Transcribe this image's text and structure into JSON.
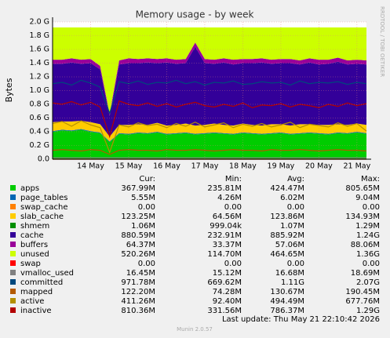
{
  "chart_data": {
    "type": "area",
    "title": "Memory usage - by week",
    "ylabel": "Bytes",
    "side_note": "RRDTOOL / TOBI OETIKER",
    "categories": [
      null,
      null,
      null,
      null,
      "14 May",
      null,
      null,
      null,
      "15 May",
      null,
      null,
      null,
      "16 May",
      null,
      null,
      null,
      "17 May",
      null,
      null,
      null,
      "18 May",
      null,
      null,
      null,
      "19 May",
      null,
      null,
      null,
      "20 May",
      null,
      null,
      null,
      "21 May",
      null
    ],
    "ylim": [
      0,
      2.0
    ],
    "yticks": [
      {
        "value": 0,
        "label": "0.0"
      },
      {
        "value": 0.2,
        "label": "0.2 G"
      },
      {
        "value": 0.4,
        "label": "0.4 G"
      },
      {
        "value": 0.6,
        "label": "0.6 G"
      },
      {
        "value": 0.8,
        "label": "0.8 G"
      },
      {
        "value": 1.0,
        "label": "1.0 G"
      },
      {
        "value": 1.2,
        "label": "1.2 G"
      },
      {
        "value": 1.4,
        "label": "1.4 G"
      },
      {
        "value": 1.6,
        "label": "1.6 G"
      },
      {
        "value": 1.8,
        "label": "1.8 G"
      },
      {
        "value": 2.0,
        "label": "2.0 G"
      }
    ],
    "grid": true,
    "series": [
      {
        "name": "apps",
        "color": "#00cc00",
        "style": "area",
        "values": [
          0.4,
          0.42,
          0.41,
          0.43,
          0.4,
          0.38,
          0.25,
          0.37,
          0.36,
          0.38,
          0.37,
          0.39,
          0.36,
          0.37,
          0.38,
          0.36,
          0.37,
          0.38,
          0.37,
          0.36,
          0.38,
          0.37,
          0.36,
          0.37,
          0.38,
          0.36,
          0.37,
          0.38,
          0.37,
          0.36,
          0.38,
          0.37,
          0.39,
          0.37
        ]
      },
      {
        "name": "page_tables",
        "color": "#0066b3",
        "style": "area",
        "values": [
          0.01,
          0.01,
          0.01,
          0.01,
          0.01,
          0.01,
          0.01,
          0.01,
          0.01,
          0.01,
          0.01,
          0.01,
          0.01,
          0.01,
          0.01,
          0.01,
          0.01,
          0.01,
          0.01,
          0.01,
          0.01,
          0.01,
          0.01,
          0.01,
          0.01,
          0.01,
          0.01,
          0.01,
          0.01,
          0.01,
          0.01,
          0.01,
          0.01,
          0.01
        ]
      },
      {
        "name": "swap_cache",
        "color": "#ff8000",
        "style": "area",
        "values": [
          0,
          0,
          0,
          0,
          0,
          0,
          0,
          0,
          0,
          0,
          0,
          0,
          0,
          0,
          0,
          0,
          0,
          0,
          0,
          0,
          0,
          0,
          0,
          0,
          0,
          0,
          0,
          0,
          0,
          0,
          0,
          0,
          0,
          0
        ]
      },
      {
        "name": "slab_cache",
        "color": "#ffcc00",
        "style": "area",
        "values": [
          0.13,
          0.12,
          0.13,
          0.12,
          0.13,
          0.12,
          0.07,
          0.12,
          0.13,
          0.12,
          0.12,
          0.13,
          0.12,
          0.12,
          0.13,
          0.12,
          0.12,
          0.13,
          0.12,
          0.12,
          0.13,
          0.12,
          0.12,
          0.13,
          0.12,
          0.12,
          0.13,
          0.12,
          0.12,
          0.13,
          0.12,
          0.12,
          0.12,
          0.12
        ]
      },
      {
        "name": "shmem",
        "color": "#008f00",
        "style": "area",
        "values": [
          0,
          0,
          0,
          0,
          0,
          0,
          0,
          0,
          0,
          0,
          0,
          0,
          0,
          0,
          0,
          0,
          0,
          0,
          0,
          0,
          0,
          0,
          0,
          0,
          0,
          0,
          0,
          0,
          0,
          0,
          0,
          0,
          0,
          0
        ]
      },
      {
        "name": "cache",
        "color": "#330099",
        "style": "area",
        "values": [
          0.85,
          0.84,
          0.86,
          0.83,
          0.86,
          0.8,
          0.3,
          0.88,
          0.9,
          0.89,
          0.91,
          0.87,
          0.92,
          0.89,
          0.88,
          1.15,
          0.9,
          0.87,
          0.91,
          0.89,
          0.88,
          0.9,
          0.92,
          0.88,
          0.89,
          0.91,
          0.87,
          0.9,
          0.88,
          0.89,
          0.91,
          0.88,
          0.87,
          0.88
        ]
      },
      {
        "name": "buffers",
        "color": "#990099",
        "style": "area",
        "values": [
          0.06,
          0.06,
          0.06,
          0.06,
          0.06,
          0.05,
          0.03,
          0.06,
          0.07,
          0.06,
          0.06,
          0.06,
          0.06,
          0.06,
          0.06,
          0.06,
          0.06,
          0.06,
          0.06,
          0.07,
          0.06,
          0.06,
          0.06,
          0.06,
          0.06,
          0.06,
          0.06,
          0.06,
          0.07,
          0.06,
          0.06,
          0.06,
          0.06,
          0.06
        ]
      },
      {
        "name": "unused",
        "color": "#ccff00",
        "style": "area",
        "values": [
          0.47,
          0.47,
          0.45,
          0.47,
          0.46,
          0.56,
          1.26,
          0.48,
          0.45,
          0.46,
          0.45,
          0.46,
          0.45,
          0.47,
          0.46,
          0.22,
          0.46,
          0.47,
          0.45,
          0.47,
          0.46,
          0.46,
          0.45,
          0.47,
          0.46,
          0.46,
          0.48,
          0.45,
          0.47,
          0.47,
          0.44,
          0.48,
          0.47,
          0.48
        ]
      },
      {
        "name": "swap",
        "color": "#ff0000",
        "style": "line",
        "values": [
          0,
          0,
          0,
          0,
          0,
          0,
          0,
          0,
          0,
          0,
          0,
          0,
          0,
          0,
          0,
          0,
          0,
          0,
          0,
          0,
          0,
          0,
          0,
          0,
          0,
          0,
          0,
          0,
          0,
          0,
          0,
          0,
          0,
          0
        ]
      },
      {
        "name": "vmalloc_used",
        "color": "#808080",
        "style": "line",
        "values": [
          0.02,
          0.02,
          0.02,
          0.02,
          0.02,
          0.02,
          0.02,
          0.02,
          0.02,
          0.02,
          0.02,
          0.02,
          0.02,
          0.02,
          0.02,
          0.02,
          0.02,
          0.02,
          0.02,
          0.02,
          0.02,
          0.02,
          0.02,
          0.02,
          0.02,
          0.02,
          0.02,
          0.02,
          0.02,
          0.02,
          0.02,
          0.02,
          0.02,
          0.02
        ]
      },
      {
        "name": "committed",
        "color": "#00487d",
        "style": "line",
        "values": [
          1.1,
          1.12,
          1.08,
          1.15,
          1.11,
          1.05,
          0.67,
          1.13,
          1.1,
          1.14,
          1.09,
          1.12,
          1.11,
          1.15,
          1.1,
          1.13,
          1.08,
          1.12,
          1.11,
          1.14,
          1.09,
          1.1,
          1.13,
          1.11,
          1.12,
          1.08,
          1.14,
          1.1,
          1.12,
          1.11,
          1.13,
          1.09,
          1.12,
          1.1
        ]
      },
      {
        "name": "mapped",
        "color": "#b35a00",
        "style": "line",
        "values": [
          0.13,
          0.14,
          0.13,
          0.12,
          0.14,
          0.13,
          0.07,
          0.13,
          0.14,
          0.13,
          0.13,
          0.12,
          0.14,
          0.13,
          0.13,
          0.14,
          0.13,
          0.12,
          0.13,
          0.14,
          0.13,
          0.13,
          0.12,
          0.14,
          0.13,
          0.13,
          0.14,
          0.13,
          0.12,
          0.13,
          0.14,
          0.13,
          0.13,
          0.12
        ]
      },
      {
        "name": "active",
        "color": "#b38f00",
        "style": "line",
        "values": [
          0.52,
          0.55,
          0.48,
          0.56,
          0.5,
          0.46,
          0.1,
          0.5,
          0.47,
          0.53,
          0.49,
          0.51,
          0.46,
          0.52,
          0.48,
          0.54,
          0.47,
          0.5,
          0.53,
          0.46,
          0.51,
          0.48,
          0.52,
          0.47,
          0.5,
          0.54,
          0.46,
          0.51,
          0.49,
          0.47,
          0.53,
          0.48,
          0.52,
          0.41
        ]
      },
      {
        "name": "inactive",
        "color": "#b30000",
        "style": "line",
        "values": [
          0.82,
          0.8,
          0.84,
          0.79,
          0.83,
          0.76,
          0.33,
          0.85,
          0.8,
          0.78,
          0.82,
          0.77,
          0.81,
          0.76,
          0.8,
          0.83,
          0.78,
          0.76,
          0.8,
          0.77,
          0.82,
          0.75,
          0.79,
          0.78,
          0.81,
          0.76,
          0.8,
          0.78,
          0.75,
          0.8,
          0.77,
          0.82,
          0.78,
          0.81
        ]
      }
    ],
    "legend_table": {
      "headers": [
        "Cur:",
        "Min:",
        "Avg:",
        "Max:"
      ],
      "rows": [
        [
          "367.99M",
          "235.81M",
          "424.47M",
          "805.65M"
        ],
        [
          "5.55M",
          "4.26M",
          "6.02M",
          "9.04M"
        ],
        [
          "0.00",
          "0.00",
          "0.00",
          "0.00"
        ],
        [
          "123.25M",
          "64.56M",
          "123.86M",
          "134.93M"
        ],
        [
          "1.06M",
          "999.04k",
          "1.07M",
          "1.29M"
        ],
        [
          "880.59M",
          "232.91M",
          "885.92M",
          "1.24G"
        ],
        [
          "64.37M",
          "33.37M",
          "57.06M",
          "88.06M"
        ],
        [
          "520.26M",
          "114.70M",
          "464.65M",
          "1.36G"
        ],
        [
          "0.00",
          "0.00",
          "0.00",
          "0.00"
        ],
        [
          "16.45M",
          "15.12M",
          "16.68M",
          "18.69M"
        ],
        [
          "971.78M",
          "669.62M",
          "1.11G",
          "2.07G"
        ],
        [
          "122.20M",
          "74.28M",
          "130.67M",
          "190.45M"
        ],
        [
          "411.26M",
          "92.40M",
          "494.49M",
          "677.76M"
        ],
        [
          "810.36M",
          "331.56M",
          "786.37M",
          "1.29G"
        ]
      ]
    },
    "last_update": "Last update: Thu May 21 22:10:42 2026",
    "footer": "Munin 2.0.57"
  }
}
